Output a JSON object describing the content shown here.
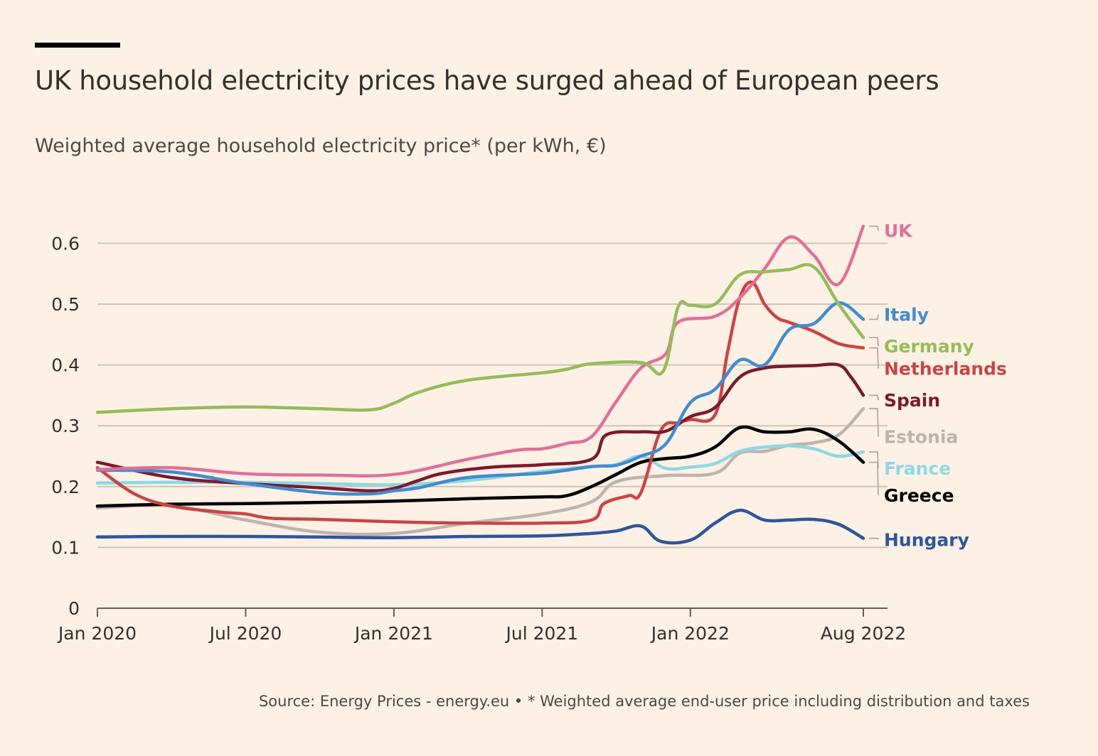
{
  "header": {
    "title": "UK household electricity prices have surged ahead of European peers",
    "subtitle": "Weighted average household electricity price* (per kWh, €)"
  },
  "footer": {
    "source": "Source: Energy Prices - energy.eu • * Weighted average end-user price including distribution and taxes"
  },
  "chart_data": {
    "type": "line",
    "title": "UK household electricity prices have surged ahead of European peers",
    "ylabel": "Weighted average household electricity price* (per kWh, €)",
    "xlabel": "",
    "x_range": [
      0,
      31
    ],
    "ylim": [
      0,
      0.62
    ],
    "y_ticks": [
      {
        "value": 0,
        "label": "0"
      },
      {
        "value": 0.1,
        "label": "0.1"
      },
      {
        "value": 0.2,
        "label": "0.2"
      },
      {
        "value": 0.3,
        "label": "0.3"
      },
      {
        "value": 0.4,
        "label": "0.4"
      },
      {
        "value": 0.5,
        "label": "0.5"
      },
      {
        "value": 0.6,
        "label": "0.6"
      }
    ],
    "x_ticks": [
      {
        "value": 0,
        "label": "Jan 2020"
      },
      {
        "value": 6,
        "label": "Jul 2020"
      },
      {
        "value": 12,
        "label": "Jan 2021"
      },
      {
        "value": 18,
        "label": "Jul 2021"
      },
      {
        "value": 24,
        "label": "Jan 2022"
      },
      {
        "value": 31,
        "label": "Aug 2022"
      }
    ],
    "series": [
      {
        "name": "Estonia",
        "color": "#bfb4ad",
        "points": [
          [
            0,
            0.165
          ],
          [
            3,
            0.168
          ],
          [
            6,
            0.145
          ],
          [
            9,
            0.125
          ],
          [
            12,
            0.123
          ],
          [
            15,
            0.14
          ],
          [
            18,
            0.155
          ],
          [
            20,
            0.175
          ],
          [
            21,
            0.208
          ],
          [
            23,
            0.218
          ],
          [
            25,
            0.222
          ],
          [
            26,
            0.255
          ],
          [
            27,
            0.258
          ],
          [
            28,
            0.268
          ],
          [
            29,
            0.272
          ],
          [
            30,
            0.285
          ],
          [
            31,
            0.328
          ]
        ],
        "label_y": 0.282
      },
      {
        "name": "France",
        "color": "#8ed8e3",
        "points": [
          [
            0,
            0.206
          ],
          [
            3,
            0.207
          ],
          [
            6,
            0.207
          ],
          [
            9,
            0.205
          ],
          [
            12,
            0.203
          ],
          [
            15,
            0.21
          ],
          [
            18,
            0.225
          ],
          [
            20,
            0.233
          ],
          [
            21,
            0.236
          ],
          [
            22,
            0.25
          ],
          [
            23,
            0.23
          ],
          [
            24,
            0.232
          ],
          [
            25,
            0.238
          ],
          [
            26,
            0.258
          ],
          [
            27,
            0.265
          ],
          [
            28,
            0.267
          ],
          [
            29,
            0.262
          ],
          [
            30,
            0.25
          ],
          [
            31,
            0.257
          ]
        ],
        "label_y": 0.23
      },
      {
        "name": "Hungary",
        "color": "#2e5699",
        "points": [
          [
            0,
            0.117
          ],
          [
            3,
            0.118
          ],
          [
            6,
            0.118
          ],
          [
            9,
            0.117
          ],
          [
            12,
            0.116
          ],
          [
            15,
            0.118
          ],
          [
            18,
            0.119
          ],
          [
            20,
            0.123
          ],
          [
            21,
            0.127
          ],
          [
            22,
            0.135
          ],
          [
            22.8,
            0.11
          ],
          [
            24,
            0.112
          ],
          [
            25,
            0.14
          ],
          [
            26,
            0.161
          ],
          [
            27,
            0.145
          ],
          [
            28,
            0.145
          ],
          [
            29,
            0.146
          ],
          [
            30,
            0.138
          ],
          [
            31,
            0.115
          ]
        ],
        "label_y": 0.113
      },
      {
        "name": "Greece",
        "color": "#000000",
        "points": [
          [
            0,
            0.168
          ],
          [
            3,
            0.171
          ],
          [
            6,
            0.172
          ],
          [
            9,
            0.174
          ],
          [
            12,
            0.176
          ],
          [
            15,
            0.18
          ],
          [
            18,
            0.183
          ],
          [
            19,
            0.185
          ],
          [
            20,
            0.2
          ],
          [
            21,
            0.22
          ],
          [
            22,
            0.24
          ],
          [
            23,
            0.246
          ],
          [
            24,
            0.25
          ],
          [
            25,
            0.265
          ],
          [
            26,
            0.297
          ],
          [
            27,
            0.29
          ],
          [
            28,
            0.29
          ],
          [
            29,
            0.294
          ],
          [
            30,
            0.275
          ],
          [
            31,
            0.24
          ]
        ],
        "label_y": 0.186
      },
      {
        "name": "Netherlands",
        "color": "#c94545",
        "points": [
          [
            0,
            0.231
          ],
          [
            1.5,
            0.188
          ],
          [
            3,
            0.168
          ],
          [
            5,
            0.158
          ],
          [
            6,
            0.155
          ],
          [
            7,
            0.148
          ],
          [
            9,
            0.146
          ],
          [
            12,
            0.142
          ],
          [
            15,
            0.14
          ],
          [
            18,
            0.14
          ],
          [
            20,
            0.145
          ],
          [
            20.5,
            0.172
          ],
          [
            21.5,
            0.185
          ],
          [
            22,
            0.19
          ],
          [
            22.8,
            0.292
          ],
          [
            23.5,
            0.305
          ],
          [
            24,
            0.31
          ],
          [
            25,
            0.318
          ],
          [
            25.5,
            0.42
          ],
          [
            26,
            0.51
          ],
          [
            26.5,
            0.536
          ],
          [
            27,
            0.5
          ],
          [
            27.5,
            0.478
          ],
          [
            28,
            0.47
          ],
          [
            29,
            0.455
          ],
          [
            30,
            0.435
          ],
          [
            31,
            0.428
          ]
        ],
        "label_y": 0.394
      },
      {
        "name": "Spain",
        "color": "#7b1a2e",
        "points": [
          [
            0,
            0.24
          ],
          [
            3,
            0.215
          ],
          [
            6,
            0.205
          ],
          [
            9,
            0.198
          ],
          [
            11,
            0.193
          ],
          [
            12,
            0.197
          ],
          [
            13,
            0.21
          ],
          [
            14,
            0.222
          ],
          [
            16,
            0.232
          ],
          [
            18,
            0.236
          ],
          [
            20,
            0.245
          ],
          [
            20.6,
            0.285
          ],
          [
            22,
            0.29
          ],
          [
            23,
            0.291
          ],
          [
            24,
            0.315
          ],
          [
            25,
            0.33
          ],
          [
            26,
            0.38
          ],
          [
            27,
            0.395
          ],
          [
            28,
            0.398
          ],
          [
            29,
            0.399
          ],
          [
            30,
            0.4
          ],
          [
            30.5,
            0.38
          ],
          [
            31,
            0.35
          ]
        ],
        "label_y": 0.342
      },
      {
        "name": "Italy",
        "color": "#428ccd",
        "points": [
          [
            0,
            0.227
          ],
          [
            3,
            0.224
          ],
          [
            6,
            0.205
          ],
          [
            9,
            0.19
          ],
          [
            11,
            0.188
          ],
          [
            12,
            0.193
          ],
          [
            13,
            0.198
          ],
          [
            15,
            0.215
          ],
          [
            18,
            0.222
          ],
          [
            20,
            0.233
          ],
          [
            21,
            0.235
          ],
          [
            22,
            0.25
          ],
          [
            23,
            0.27
          ],
          [
            24,
            0.338
          ],
          [
            25,
            0.36
          ],
          [
            26,
            0.408
          ],
          [
            27,
            0.4
          ],
          [
            28,
            0.458
          ],
          [
            29,
            0.468
          ],
          [
            30,
            0.502
          ],
          [
            31,
            0.475
          ]
        ],
        "label_y": 0.483
      },
      {
        "name": "UK",
        "color": "#df7198",
        "points": [
          [
            0,
            0.228
          ],
          [
            3,
            0.231
          ],
          [
            6,
            0.221
          ],
          [
            9,
            0.219
          ],
          [
            12,
            0.22
          ],
          [
            15,
            0.245
          ],
          [
            17,
            0.26
          ],
          [
            18,
            0.262
          ],
          [
            19,
            0.271
          ],
          [
            20,
            0.282
          ],
          [
            21,
            0.34
          ],
          [
            22,
            0.395
          ],
          [
            23,
            0.418
          ],
          [
            23.5,
            0.47
          ],
          [
            25,
            0.48
          ],
          [
            26,
            0.51
          ],
          [
            27,
            0.558
          ],
          [
            28,
            0.61
          ],
          [
            29,
            0.58
          ],
          [
            30,
            0.533
          ],
          [
            31,
            0.628
          ]
        ],
        "label_y": 0.621
      },
      {
        "name": "Germany",
        "color": "#96bc5a",
        "points": [
          [
            0,
            0.322
          ],
          [
            3,
            0.328
          ],
          [
            6,
            0.331
          ],
          [
            9,
            0.328
          ],
          [
            11,
            0.326
          ],
          [
            12,
            0.337
          ],
          [
            13,
            0.355
          ],
          [
            15,
            0.375
          ],
          [
            18,
            0.387
          ],
          [
            19,
            0.393
          ],
          [
            20,
            0.402
          ],
          [
            22,
            0.404
          ],
          [
            22.9,
            0.39
          ],
          [
            23.5,
            0.495
          ],
          [
            24,
            0.498
          ],
          [
            25,
            0.5
          ],
          [
            26,
            0.548
          ],
          [
            27,
            0.553
          ],
          [
            28,
            0.557
          ],
          [
            29,
            0.561
          ],
          [
            30,
            0.5
          ],
          [
            31,
            0.445
          ]
        ],
        "label_y": 0.431
      }
    ]
  }
}
